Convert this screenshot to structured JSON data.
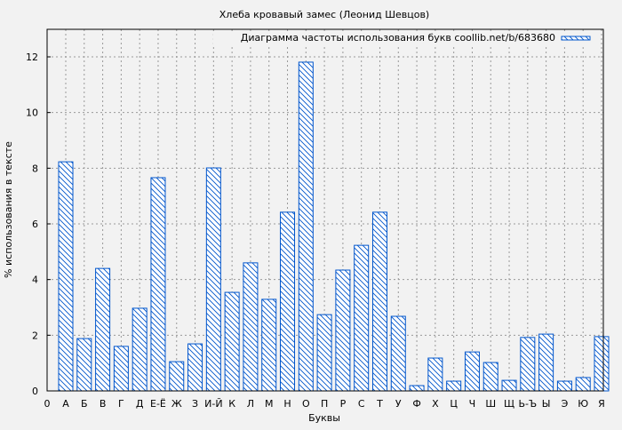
{
  "chart_data": {
    "type": "bar",
    "title": "Хлеба кровавый замес (Леонид Шевцов)",
    "xlabel": "Буквы",
    "ylabel": "% использования в тексте",
    "legend": {
      "label": "Диаграмма частоты использования букв coollib.net/b/683680",
      "placement": "top-right"
    },
    "x_zero_label": "0",
    "categories": [
      "А",
      "Б",
      "В",
      "Г",
      "Д",
      "Е-Ё",
      "Ж",
      "З",
      "И-Й",
      "К",
      "Л",
      "М",
      "Н",
      "О",
      "П",
      "Р",
      "С",
      "Т",
      "У",
      "Ф",
      "Х",
      "Ц",
      "Ч",
      "Ш",
      "Щ",
      "Ь-Ъ",
      "Ы",
      "Э",
      "Ю",
      "Я"
    ],
    "values": [
      8.23,
      1.88,
      4.4,
      1.6,
      2.97,
      7.66,
      1.05,
      1.69,
      8.01,
      3.54,
      4.6,
      3.29,
      6.42,
      11.81,
      2.74,
      4.34,
      5.23,
      6.42,
      2.68,
      0.19,
      1.18,
      0.35,
      1.4,
      1.02,
      0.38,
      1.92,
      2.04,
      0.35,
      0.48,
      1.95
    ],
    "ylim": [
      0,
      13
    ],
    "yticks": [
      0,
      2,
      4,
      6,
      8,
      10,
      12
    ],
    "grid": true,
    "colors": {
      "bar_stroke": "#0055cc",
      "background": "#f2f2f2"
    }
  }
}
